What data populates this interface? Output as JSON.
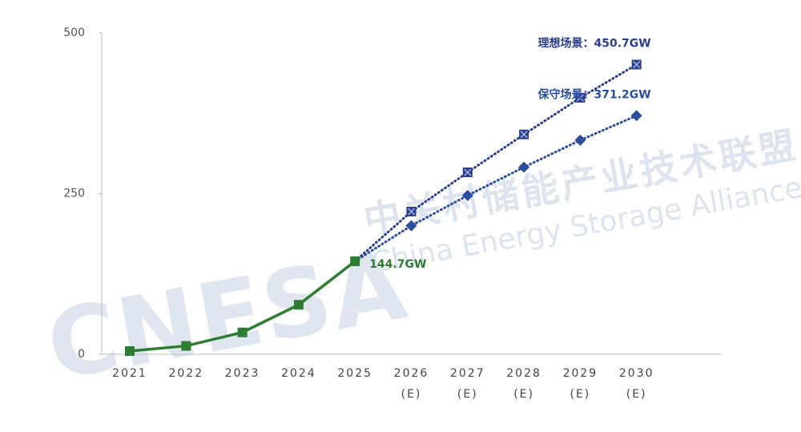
{
  "chart_data": {
    "type": "line",
    "watermark": [
      "CNESA",
      "中关村储能产业技术联盟",
      "China Energy Storage Alliance"
    ],
    "categories": [
      "2021",
      "2022",
      "2023",
      "2024",
      "2025",
      "2026\n(E)",
      "2027\n(E)",
      "2028\n(E)",
      "2029\n(E)",
      "2030\n(E)"
    ],
    "series": [
      {
        "color": "#2b3f8c",
        "dashed": true,
        "marker": "square-x",
        "values": [
          null,
          null,
          null,
          null,
          144.7,
          222,
          283,
          342,
          399,
          450.7
        ],
        "value_labels": [
          null,
          null,
          null,
          null,
          null,
          null,
          null,
          null,
          null,
          "理想场景：450.7GW"
        ]
      },
      {
        "color": "#2b4f9c",
        "dashed": true,
        "marker": "diamond",
        "values": [
          null,
          null,
          null,
          null,
          144.7,
          200,
          247,
          291,
          333,
          371.2
        ],
        "value_labels": [
          null,
          null,
          null,
          null,
          null,
          null,
          null,
          null,
          null,
          "保守场景：371.2GW"
        ]
      },
      {
        "color": "#2e7d32",
        "dashed": false,
        "marker": "square",
        "values": [
          5,
          13,
          34,
          77,
          144.7,
          null,
          null,
          null,
          null,
          null
        ],
        "value_labels": [
          null,
          null,
          null,
          null,
          "144.7GW",
          null,
          null,
          null,
          null,
          null
        ]
      }
    ],
    "ylim": [
      0,
      500
    ],
    "yticks": [
      0,
      250,
      500
    ],
    "grid": false
  }
}
